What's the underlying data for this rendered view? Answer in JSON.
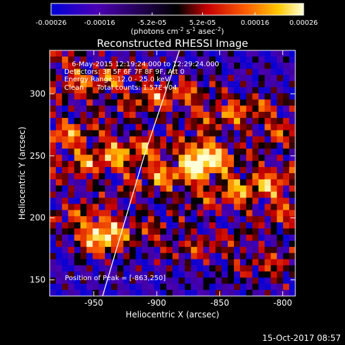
{
  "colorbar": {
    "ticks": [
      "-0.00026",
      "-0.00016",
      "-5.2e-05",
      "5.2e-05",
      "0.00016",
      "0.00026"
    ],
    "tick_values": [
      -0.00026,
      -0.00016,
      -5.2e-05,
      5.2e-05,
      0.00016,
      0.00026
    ],
    "range": [
      -0.00026,
      0.00026
    ],
    "units_prefix": "(photons cm",
    "units_exp1": "-2",
    "units_mid": " s",
    "units_exp2": "-1",
    "units_mid2": " asec",
    "units_exp3": "-2",
    "units_suffix": ")",
    "colors": [
      "#0000d8",
      "#4b00b4",
      "#000000",
      "#c80000",
      "#ff6400",
      "#ffc800",
      "#ffffd8"
    ]
  },
  "chart_data": {
    "type": "heatmap",
    "title": "Reconstructed RHESSI Image",
    "xlabel": "Heliocentric X (arcsec)",
    "ylabel": "Heliocentric Y (arcsec)",
    "xlim": [
      -985,
      -790
    ],
    "ylim": [
      137,
      335
    ],
    "x_ticks": [
      -950,
      -900,
      -850,
      -800
    ],
    "y_ticks": [
      150,
      200,
      250,
      300
    ],
    "x_tick_labels": [
      "-950",
      "-900",
      "-850",
      "-800"
    ],
    "y_tick_labels": [
      "150",
      "200",
      "250",
      "300"
    ],
    "colormap": "rainbow/heat (blue-purple-black-red-orange-yellow-white)",
    "value_range": [
      -0.00026,
      0.00026
    ],
    "limb_line": [
      [
        -943,
        137
      ],
      [
        -910,
        250
      ],
      [
        -882,
        335
      ]
    ],
    "peak_position": [
      -863,
      250
    ],
    "annotations": {
      "time": "6-May-2015 12:19:24.000 to 12:29:24.000",
      "detectors": "Detectors: 3F 5F 6F 7F 8F 9F, Att 0",
      "energy": "Energy Range: 12.0 - 25.0 keV",
      "clean": "Clean      Total counts: 1.57E+04",
      "peak": "Position of Peak = [-863,250]"
    }
  },
  "footer_date": "15-Oct-2017 08:57"
}
